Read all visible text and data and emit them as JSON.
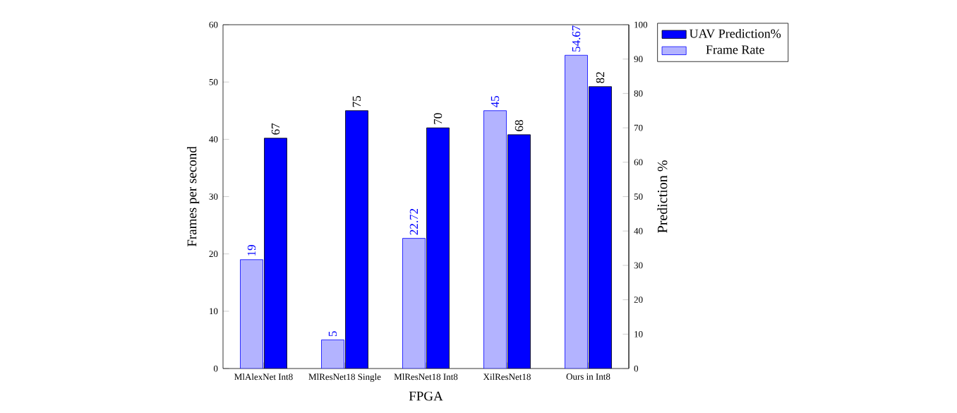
{
  "chart_data": {
    "type": "bar",
    "xlabel": "FPGA",
    "ylabel": "Frames per second",
    "y2label": "Prediction %",
    "categories": [
      "MlAlexNet Int8",
      "MlResNet18 Single",
      "MlResNet18 Int8",
      "XilResNet18",
      "Ours in Int8"
    ],
    "series": [
      {
        "name": "Frame Rate",
        "color": "#b3b3ff",
        "values": [
          19,
          5,
          22.72,
          45,
          54.67
        ],
        "value_labels": [
          "19",
          "5",
          "22.72",
          "45",
          "54.67"
        ]
      },
      {
        "name": "UAV Prediction%",
        "color": "#0000ff",
        "axis": "y2",
        "values": [
          67,
          75,
          70,
          68,
          82
        ],
        "value_labels": [
          "67",
          "75",
          "70",
          "68",
          "82"
        ]
      }
    ],
    "ylim": [
      0,
      60
    ],
    "yticks": [
      0,
      10,
      20,
      30,
      40,
      50,
      60
    ],
    "y2lim": [
      0,
      100
    ],
    "y2ticks": [
      0,
      10,
      20,
      30,
      40,
      50,
      60,
      70,
      80,
      90,
      100
    ],
    "legend": "top right"
  }
}
